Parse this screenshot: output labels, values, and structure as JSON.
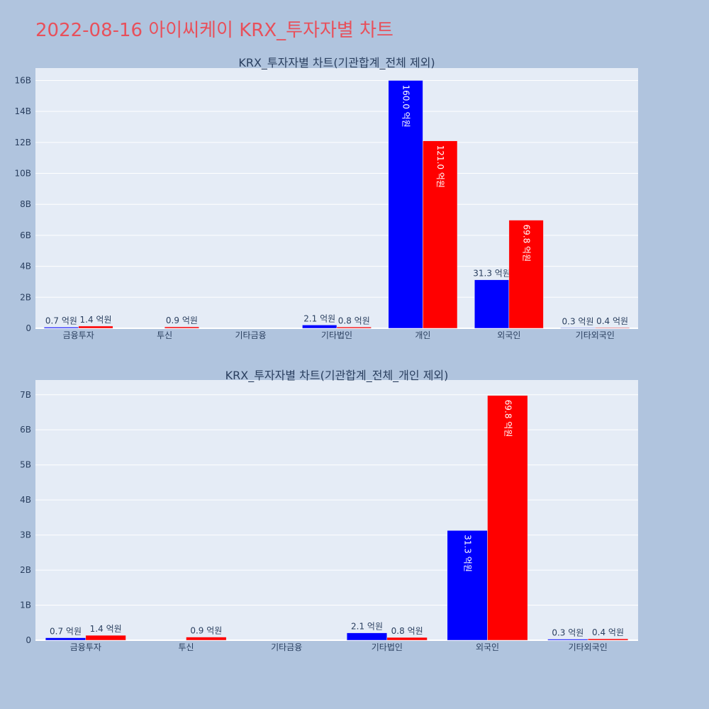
{
  "title": "2022-08-16 아이씨케이 KRX_투자자별 차트",
  "colors": {
    "buy": "#0000ff",
    "sell": "#ff0000",
    "title": "#e8505b",
    "background": "#b0c4de",
    "plot_background": "#e5ecf6"
  },
  "chart_data": [
    {
      "type": "bar",
      "title": "KRX_투자자별 차트(기관합계_전체 제외)",
      "categories": [
        "금융투자",
        "투신",
        "기타금융",
        "기타법인",
        "개인",
        "외국인",
        "기타외국인"
      ],
      "series": [
        {
          "color": "#0000ff",
          "values": [
            70000000,
            0,
            0,
            210000000,
            16000000000,
            3130000000,
            30000000
          ],
          "labels": [
            "0.7 억원",
            "",
            "",
            "2.1 억원",
            "160.0 억원",
            "31.3 억원",
            "0.3 억원"
          ]
        },
        {
          "color": "#ff0000",
          "values": [
            140000000,
            90000000,
            0,
            80000000,
            12100000000,
            6980000000,
            40000000
          ],
          "labels": [
            "1.4 억원",
            "0.9 억원",
            "",
            "0.8 억원",
            "121.0 억원",
            "69.8 억원",
            "0.4 억원"
          ]
        }
      ],
      "yticks": [
        0,
        2000000000,
        4000000000,
        6000000000,
        8000000000,
        10000000000,
        12000000000,
        14000000000,
        16000000000
      ],
      "ytick_labels": [
        "0",
        "2B",
        "4B",
        "6B",
        "8B",
        "10B",
        "12B",
        "14B",
        "16B"
      ],
      "ylim": [
        0,
        16800000000
      ],
      "grid": true,
      "barmode": "group"
    },
    {
      "type": "bar",
      "title": "KRX_투자자별 차트(기관합계_전체_개인 제외)",
      "categories": [
        "금융투자",
        "투신",
        "기타금융",
        "기타법인",
        "외국인",
        "기타외국인"
      ],
      "series": [
        {
          "color": "#0000ff",
          "values": [
            70000000,
            0,
            0,
            210000000,
            3130000000,
            30000000
          ],
          "labels": [
            "0.7 억원",
            "",
            "",
            "2.1 억원",
            "31.3 억원",
            "0.3 억원"
          ]
        },
        {
          "color": "#ff0000",
          "values": [
            140000000,
            90000000,
            0,
            80000000,
            6980000000,
            40000000
          ],
          "labels": [
            "1.4 억원",
            "0.9 억원",
            "",
            "0.8 억원",
            "69.8 억원",
            "0.4 억원"
          ]
        }
      ],
      "yticks": [
        0,
        1000000000,
        2000000000,
        3000000000,
        4000000000,
        5000000000,
        6000000000,
        7000000000
      ],
      "ytick_labels": [
        "0",
        "1B",
        "2B",
        "3B",
        "4B",
        "5B",
        "6B",
        "7B"
      ],
      "ylim": [
        0,
        7420000000
      ],
      "grid": true,
      "barmode": "group"
    }
  ]
}
